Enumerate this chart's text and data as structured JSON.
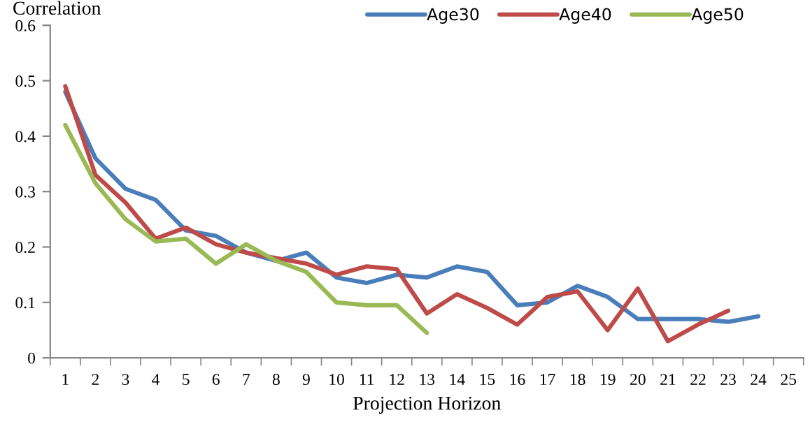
{
  "chart_data": {
    "type": "line",
    "xlabel": "Projection Horizon",
    "ylabel": "Correlation",
    "categories": [
      "1",
      "2",
      "3",
      "4",
      "5",
      "6",
      "7",
      "8",
      "9",
      "10",
      "11",
      "12",
      "13",
      "14",
      "15",
      "16",
      "17",
      "18",
      "19",
      "20",
      "21",
      "22",
      "23",
      "24",
      "25"
    ],
    "series": [
      {
        "name": "Age30",
        "color": "#4a7ebb",
        "values": [
          0.48,
          0.36,
          0.305,
          0.285,
          0.23,
          0.22,
          0.19,
          0.175,
          0.19,
          0.145,
          0.135,
          0.15,
          0.145,
          0.165,
          0.155,
          0.095,
          0.1,
          0.13,
          0.11,
          0.07,
          0.07,
          0.07,
          0.065,
          0.075,
          null
        ]
      },
      {
        "name": "Age40",
        "color": "#be4b48",
        "values": [
          0.49,
          0.33,
          0.28,
          0.215,
          0.235,
          0.205,
          0.19,
          0.18,
          0.17,
          0.15,
          0.165,
          0.16,
          0.08,
          0.115,
          0.09,
          0.06,
          0.11,
          0.12,
          0.05,
          0.125,
          0.03,
          0.06,
          0.085,
          null,
          null
        ]
      },
      {
        "name": "Age50",
        "color": "#98b954",
        "values": [
          0.42,
          0.315,
          0.25,
          0.21,
          0.215,
          0.17,
          0.205,
          0.175,
          0.155,
          0.1,
          0.095,
          0.095,
          0.045,
          null,
          null,
          null,
          null,
          null,
          null,
          null,
          null,
          null,
          null,
          null,
          null
        ]
      }
    ],
    "ylim": [
      0,
      0.6
    ],
    "yticks": [
      0,
      0.1,
      0.2,
      0.3,
      0.4,
      0.5,
      0.6
    ],
    "legend": "top right",
    "grid": false,
    "marker": "none",
    "line_style": "solid"
  }
}
